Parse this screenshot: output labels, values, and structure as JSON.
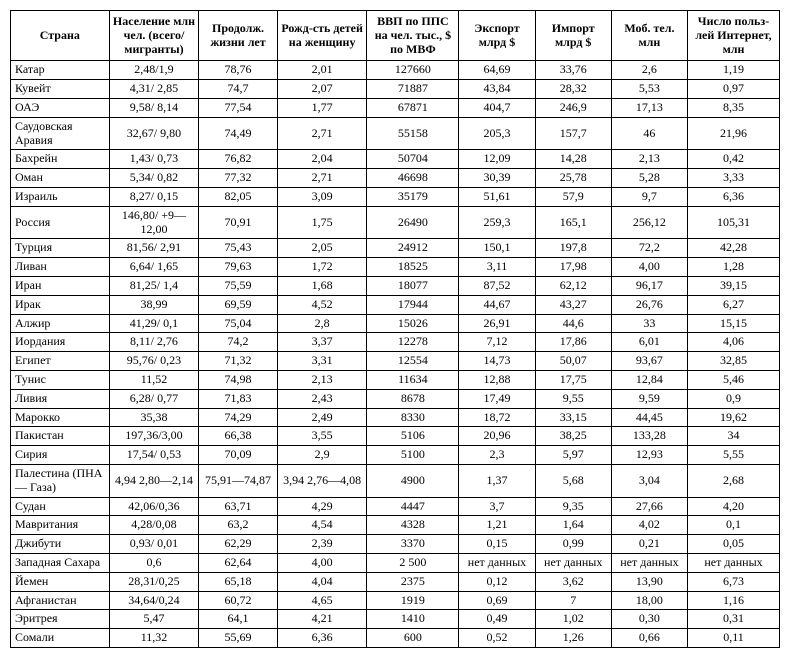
{
  "table": {
    "columns": [
      "Страна",
      "Население млн чел. (всего/ мигранты)",
      "Продолж. жизни лет",
      "Рожд-сть детей на женщину",
      "ВВП по ППС на чел. тыс., $ по МВФ",
      "Экспорт млрд $",
      "Импорт млрд $",
      "Моб. тел. млн",
      "Число польз-лей Интернет, млн"
    ],
    "column_widths": [
      "88px",
      "80px",
      "70px",
      "80px",
      "82px",
      "68px",
      "68px",
      "68px",
      "82px"
    ],
    "header_bg": "#ffffff",
    "border_color": "#000000",
    "rows": [
      [
        "Катар",
        "2,48/1,9",
        "78,76",
        "2,01",
        "127660",
        "64,69",
        "33,76",
        "2,6",
        "1,19"
      ],
      [
        "Кувейт",
        "4,31/ 2,85",
        "74,7",
        "2,07",
        "71887",
        "43,84",
        "28,32",
        "5,53",
        "0,97"
      ],
      [
        "ОАЭ",
        "9,58/ 8,14",
        "77,54",
        "1,77",
        "67871",
        "404,7",
        "246,9",
        "17,13",
        "8,35"
      ],
      [
        "Саудовская Аравия",
        "32,67/ 9,80",
        "74,49",
        "2,71",
        "55158",
        "205,3",
        "157,7",
        "46",
        "21,96"
      ],
      [
        "Бахрейн",
        "1,43/ 0,73",
        "76,82",
        "2,04",
        "50704",
        "12,09",
        "14,28",
        "2,13",
        "0,42"
      ],
      [
        "Оман",
        "5,34/ 0,82",
        "77,32",
        "2,71",
        "46698",
        "30,39",
        "25,78",
        "5,28",
        "3,33"
      ],
      [
        "Израиль",
        "8,27/ 0,15",
        "82,05",
        "3,09",
        "35179",
        "51,61",
        "57,9",
        "9,7",
        "6,36"
      ],
      [
        "Россия",
        "146,80/ +9—12,00",
        "70,91",
        "1,75",
        "26490",
        "259,3",
        "165,1",
        "256,12",
        "105,31"
      ],
      [
        "Турция",
        "81,56/ 2,91",
        "75,43",
        "2,05",
        "24912",
        "150,1",
        "197,8",
        "72,2",
        "42,28"
      ],
      [
        "Ливан",
        "6,64/ 1,65",
        "79,63",
        "1,72",
        "18525",
        "3,11",
        "17,98",
        "4,00",
        "1,28"
      ],
      [
        "Иран",
        "81,25/ 1,4",
        "75,59",
        "1,68",
        "18077",
        "87,52",
        "62,12",
        "96,17",
        "39,15"
      ],
      [
        "Ирак",
        "38,99",
        "69,59",
        "4,52",
        "17944",
        "44,67",
        "43,27",
        "26,76",
        "6,27"
      ],
      [
        "Алжир",
        "41,29/ 0,1",
        "75,04",
        "2,8",
        "15026",
        "26,91",
        "44,6",
        "33",
        "15,15"
      ],
      [
        "Иордания",
        "8,11/ 2,76",
        "74,2",
        "3,37",
        "12278",
        "7,12",
        "17,86",
        "6,01",
        "4,06"
      ],
      [
        "Египет",
        "95,76/ 0,23",
        "71,32",
        "3,31",
        "12554",
        "14,73",
        "50,07",
        "93,67",
        "32,85"
      ],
      [
        "Тунис",
        "11,52",
        "74,98",
        "2,13",
        "11634",
        "12,88",
        "17,75",
        "12,84",
        "5,46"
      ],
      [
        "Ливия",
        "6,28/ 0,77",
        "71,83",
        "2,43",
        "8678",
        "17,49",
        "9,55",
        "9,59",
        "0,9"
      ],
      [
        "Марокко",
        "35,38",
        "74,29",
        "2,49",
        "8330",
        "18,72",
        "33,15",
        "44,45",
        "19,62"
      ],
      [
        "Пакистан",
        "197,36/3,00",
        "66,38",
        "3,55",
        "5106",
        "20,96",
        "38,25",
        "133,28",
        "34"
      ],
      [
        "Сирия",
        "17,54/ 0,53",
        "70,09",
        "2,9",
        "5100",
        "2,3",
        "5,97",
        "12,93",
        "5,55"
      ],
      [
        "Палестина (ПНА — Газа)",
        "4,94 2,80—2,14",
        "75,91—74,87",
        "3,94 2,76—4,08",
        "4900",
        "1,37",
        "5,68",
        "3,04",
        "2,68"
      ],
      [
        "Судан",
        "42,06/0,36",
        "63,71",
        "4,29",
        "4447",
        "3,7",
        "9,35",
        "27,66",
        "4,20"
      ],
      [
        "Мавритания",
        "4,28/0,08",
        "63,2",
        "4,54",
        "4328",
        "1,21",
        "1,64",
        "4,02",
        "0,1"
      ],
      [
        "Джибути",
        "0,93/ 0,01",
        "62,29",
        "2,39",
        "3370",
        "0,15",
        "0,99",
        "0,21",
        "0,05"
      ],
      [
        "Западная Сахара",
        "0,6",
        "62,64",
        "4,00",
        "2 500",
        "нет данных",
        "нет данных",
        "нет данных",
        "нет данных"
      ],
      [
        "Йемен",
        "28,31/0,25",
        "65,18",
        "4,04",
        "2375",
        "0,12",
        "3,62",
        "13,90",
        "6,73"
      ],
      [
        "Афганистан",
        "34,64/0,24",
        "60,72",
        "4,65",
        "1919",
        "0,69",
        "7",
        "18,00",
        "1,16"
      ],
      [
        "Эритрея",
        "5,47",
        "64,1",
        "4,21",
        "1410",
        "0,49",
        "1,02",
        "0,30",
        "0,31"
      ],
      [
        "Сомали",
        "11,32",
        "55,69",
        "6,36",
        "600",
        "0,52",
        "1,26",
        "0,66",
        "0,11"
      ]
    ]
  }
}
